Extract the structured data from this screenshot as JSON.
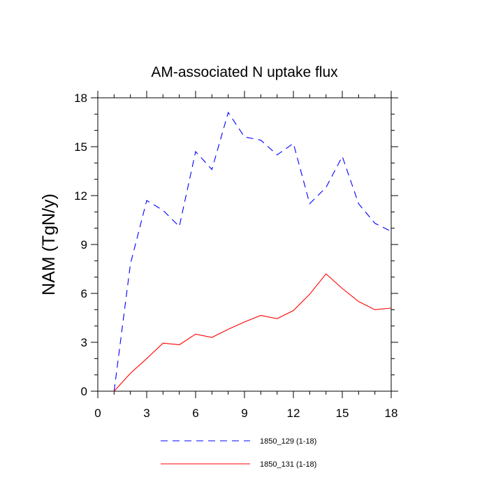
{
  "chart_data": {
    "type": "line",
    "title": "AM-associated N uptake flux",
    "xlabel": "",
    "ylabel": "NAM  (TgN/y)",
    "xlim": [
      0,
      18
    ],
    "ylim": [
      0,
      18
    ],
    "xticks": [
      0,
      3,
      6,
      9,
      12,
      15,
      18
    ],
    "yticks": [
      0,
      3,
      6,
      9,
      12,
      15,
      18
    ],
    "grid": false,
    "legend_position": "bottom",
    "series": [
      {
        "name": "1850_129 (1-18)",
        "color": "#0000ff",
        "style": "dashed",
        "x": [
          1,
          2,
          3,
          4,
          5,
          6,
          7,
          8,
          9,
          10,
          11,
          12,
          13,
          14,
          15,
          16,
          17,
          18
        ],
        "values": [
          0.0,
          7.8,
          11.7,
          11.1,
          10.1,
          14.7,
          13.6,
          17.1,
          15.6,
          15.4,
          14.5,
          15.2,
          11.5,
          12.5,
          14.4,
          11.5,
          10.3,
          9.8
        ]
      },
      {
        "name": "1850_131 (1-18)",
        "color": "#ff0000",
        "style": "solid",
        "x": [
          1,
          2,
          3,
          4,
          5,
          6,
          7,
          8,
          9,
          10,
          11,
          12,
          13,
          14,
          15,
          16,
          17,
          18
        ],
        "values": [
          0.0,
          1.1,
          2.0,
          2.95,
          2.85,
          3.5,
          3.3,
          3.8,
          4.25,
          4.65,
          4.45,
          4.95,
          5.95,
          7.2,
          6.3,
          5.5,
          5.0,
          5.1
        ]
      }
    ]
  }
}
